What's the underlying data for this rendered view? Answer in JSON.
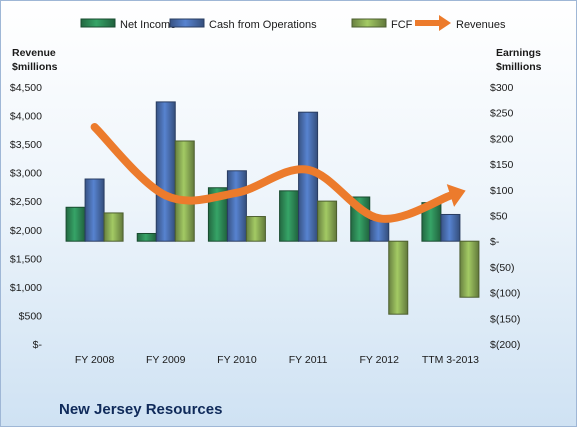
{
  "chart_data": {
    "type": "bar",
    "company": "New Jersey Resources",
    "categories": [
      "FY 2008",
      "FY 2009",
      "FY 2010",
      "FY 2011",
      "FY 2012",
      "TTM 3-2013"
    ],
    "bar_series": [
      {
        "name": "Net Income",
        "color": "#2e8b57",
        "values": [
          66,
          15,
          104,
          98,
          86,
          75
        ]
      },
      {
        "name": "Cash from Operations",
        "color": "#4a6fb0",
        "values": [
          121,
          271,
          137,
          251,
          41,
          52
        ]
      },
      {
        "name": "FCF",
        "color": "#8aab55",
        "values": [
          55,
          195,
          48,
          78,
          -142,
          -109
        ]
      }
    ],
    "line_series": {
      "name": "Revenues",
      "color": "#ec7b2c",
      "values": [
        3800,
        2600,
        2650,
        3050,
        2200,
        2600
      ]
    },
    "left_axis": {
      "label_line1": "Revenue",
      "label_line2": "$millions",
      "min": 0,
      "max": 4500,
      "ticks": [
        "$-",
        "$500",
        "$1,000",
        "$1,500",
        "$2,000",
        "$2,500",
        "$3,000",
        "$3,500",
        "$4,000",
        "$4,500"
      ]
    },
    "right_axis": {
      "label_line1": "Earnings",
      "label_line2": "$millions",
      "min": -200,
      "max": 300,
      "ticks": [
        "$(200)",
        "$(150)",
        "$(100)",
        "$(50)",
        "$-",
        "$50",
        "$100",
        "$150",
        "$200",
        "$250",
        "$300"
      ]
    },
    "legend_position": "top",
    "grid": false
  }
}
